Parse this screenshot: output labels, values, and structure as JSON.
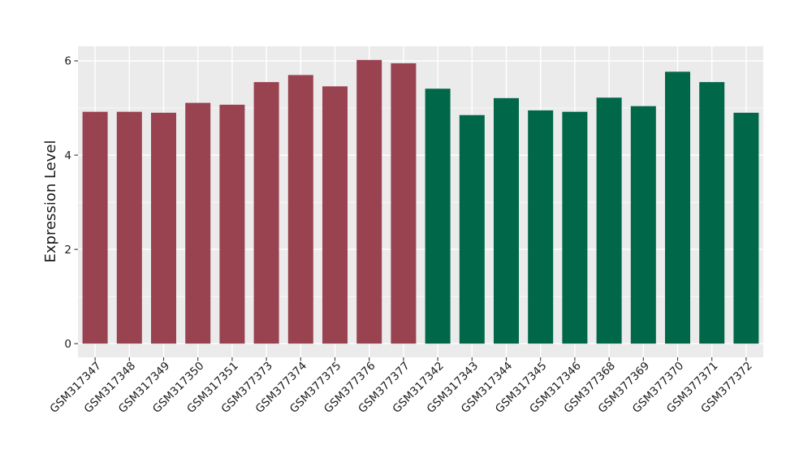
{
  "chart_data": {
    "type": "bar",
    "title": "",
    "xlabel": "",
    "ylabel": "Expression Level",
    "categories": [
      "GSM317347",
      "GSM317348",
      "GSM317349",
      "GSM317350",
      "GSM317351",
      "GSM377373",
      "GSM377374",
      "GSM377375",
      "GSM377376",
      "GSM377377",
      "GSM317342",
      "GSM317343",
      "GSM317344",
      "GSM317345",
      "GSM317346",
      "GSM377368",
      "GSM377369",
      "GSM377370",
      "GSM377371",
      "GSM377372"
    ],
    "values": [
      4.92,
      4.92,
      4.9,
      5.11,
      5.07,
      5.55,
      5.7,
      5.46,
      6.02,
      5.95,
      5.41,
      4.85,
      5.21,
      4.95,
      4.92,
      5.22,
      5.04,
      5.77,
      5.55,
      4.9
    ],
    "color_groups": [
      {
        "color": "#9A4350",
        "count": 10
      },
      {
        "color": "#006748",
        "count": 10
      }
    ],
    "yticks": [
      0,
      2,
      4,
      6
    ],
    "yticks_minor": [
      1,
      3,
      5
    ],
    "ylim": [
      0,
      6.31
    ],
    "grid": "on",
    "legend": "none",
    "panel_bg": "#EBEBEB",
    "grid_color": "#FFFFFF",
    "tick_color": "#333333",
    "text_color": "#1A1A1A",
    "background": "#FFFFFF"
  }
}
